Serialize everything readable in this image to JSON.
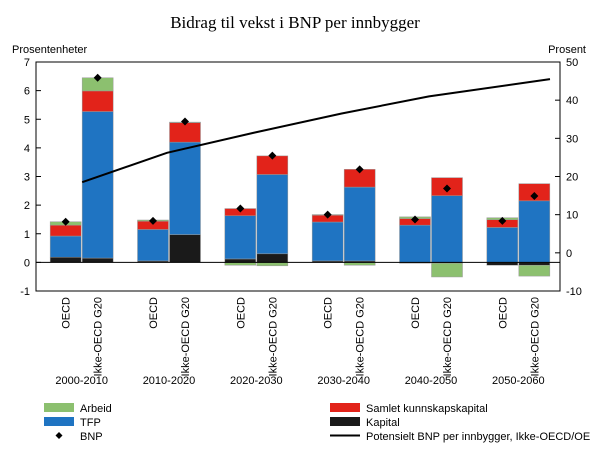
{
  "chart_data": {
    "type": "bar",
    "stacked": true,
    "title": "Bidrag til vekst i BNP per innbygger",
    "ylabel_left": "Prosentenheter",
    "ylabel_right": "Prosent",
    "ylim_left": [
      -1,
      7
    ],
    "ylim_right": [
      -10,
      50
    ],
    "yticks_left": [
      "-1",
      "0",
      "1",
      "2",
      "3",
      "4",
      "5",
      "6",
      "7"
    ],
    "yticks_right": [
      "-10",
      "0",
      "10",
      "20",
      "30",
      "40",
      "50"
    ],
    "periods": [
      "2000-2010",
      "2010-2020",
      "2020-2030",
      "2030-2040",
      "2040-2050",
      "2050-2060"
    ],
    "bar_labels": [
      "OECD",
      "Ikke-OECD G20"
    ],
    "series": [
      {
        "name": "Kapital",
        "color": "#1a1a1a",
        "values": [
          [
            0.18,
            0.15
          ],
          [
            0.05,
            0.97
          ],
          [
            0.12,
            0.3
          ],
          [
            0.05,
            0.05
          ],
          [
            -0.03,
            -0.03
          ],
          [
            -0.1,
            -0.1
          ]
        ]
      },
      {
        "name": "TFP",
        "color": "#1f74c2",
        "values": [
          [
            0.74,
            5.12
          ],
          [
            1.1,
            3.23
          ],
          [
            1.51,
            2.77
          ],
          [
            1.36,
            2.58
          ],
          [
            1.3,
            2.33
          ],
          [
            1.22,
            2.15
          ]
        ]
      },
      {
        "name": "Samlet kunnskapskapital",
        "color": "#e2231a",
        "values": [
          [
            0.38,
            0.72
          ],
          [
            0.29,
            0.68
          ],
          [
            0.25,
            0.65
          ],
          [
            0.24,
            0.62
          ],
          [
            0.23,
            0.63
          ],
          [
            0.27,
            0.6
          ]
        ]
      },
      {
        "name": "Arbeid",
        "color": "#8cc06f",
        "values": [
          [
            0.12,
            0.46
          ],
          [
            0.04,
            0.02
          ],
          [
            -0.1,
            -0.12
          ],
          [
            0.02,
            -0.1
          ],
          [
            0.06,
            -0.48
          ],
          [
            0.07,
            -0.38
          ]
        ]
      }
    ],
    "bnp": {
      "name": "BNP",
      "values": [
        [
          1.42,
          6.45
        ],
        [
          1.45,
          4.92
        ],
        [
          1.88,
          3.73
        ],
        [
          1.67,
          3.25
        ],
        [
          1.5,
          2.58
        ],
        [
          1.45,
          2.32
        ]
      ]
    },
    "potential_line": {
      "name": "Potensielt BNP per innbygger, Ikke-OECD/OECD",
      "axis": "right",
      "x": [
        2010,
        2020,
        2030,
        2040,
        2050,
        2060
      ],
      "values": [
        18.5,
        26.2,
        31.5,
        36.5,
        41.0,
        45.5
      ]
    },
    "legend": [
      {
        "label": "Arbeid",
        "color": "#8cc06f",
        "kind": "box"
      },
      {
        "label": "Samlet kunnskapskapital",
        "color": "#e2231a",
        "kind": "box"
      },
      {
        "label": "TFP",
        "color": "#1f74c2",
        "kind": "box"
      },
      {
        "label": "Kapital",
        "color": "#1a1a1a",
        "kind": "box"
      },
      {
        "label": "BNP",
        "color": "#000000",
        "kind": "diamond"
      },
      {
        "label": "Potensielt BNP per innbygger, Ikke-OECD/OECD",
        "color": "#000000",
        "kind": "line"
      }
    ],
    "grid": false
  }
}
